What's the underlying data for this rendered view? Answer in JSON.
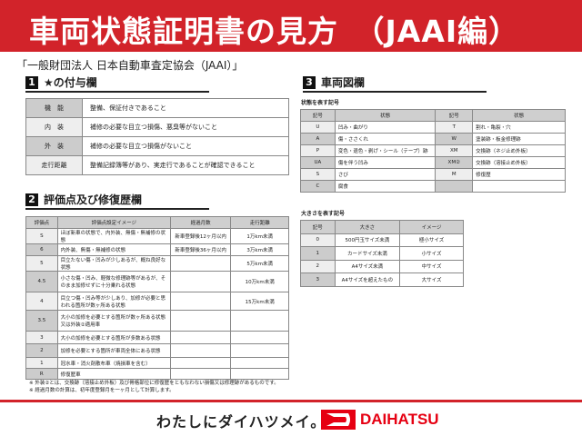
{
  "header": {
    "title": "車両状態証明書の見方　（JAAI編）",
    "band_color": "#d2232a"
  },
  "org": "「一般財団法人 日本自動車査定協会（JAAI）」",
  "sec1": {
    "num": "1",
    "title": "★の付与欄",
    "rows": [
      {
        "label": "機　能",
        "text": "整備、保証付きであること"
      },
      {
        "label": "内　装",
        "text": "補修の必要な目立つ損傷、悪臭等がないこと"
      },
      {
        "label": "外　装",
        "text": "補修の必要な目立つ損傷がないこと"
      },
      {
        "label": "走行距離",
        "text": "整備記録簿等があり、実走行であることが確認できること"
      }
    ]
  },
  "sec2": {
    "num": "2",
    "title": "評価点及び修復歴欄",
    "headers": [
      "評価点",
      "評価点設定イメージ",
      "経過月数",
      "走行距離"
    ],
    "rows": [
      [
        "S",
        "ほぼ新車の状態で、内外装、無傷・無補修の状態",
        "新車登録後12ヶ月以内",
        "1万km未満"
      ],
      [
        "6",
        "内外装、無傷・無補修の状態",
        "新車登録後36ヶ月以内",
        "3万km未満"
      ],
      [
        "5",
        "目立たない傷・凹みが少しあるが、概ね良好な状態",
        "",
        "5万km未満"
      ],
      [
        "4.5",
        "小さな傷・凹み、軽微な修理跡等があるが、そのまま加修せずに十分乗れる状態",
        "",
        "10万km未満"
      ],
      [
        "4",
        "目立つ傷・凹み等が少しあり、加修が必要と思われる箇所が数ヶ所ある状態",
        "",
        "15万km未満"
      ],
      [
        "3.5",
        "大小の加修を必要とする箇所が数ヶ所ある状態又は外装②適用車",
        "",
        ""
      ],
      [
        "3",
        "大小の加修を必要とする箇所が多数ある状態",
        "",
        ""
      ],
      [
        "2",
        "加修を必要とする箇所が車両全体にある状態",
        "",
        ""
      ],
      [
        "1",
        "冠水車・消火剤散布車（焼損車を含む）",
        "",
        ""
      ],
      [
        "R",
        "修復歴車",
        "",
        ""
      ]
    ]
  },
  "sec3": {
    "num": "3",
    "title": "車両図欄",
    "sub1": "状態を表す記号",
    "headers": [
      "記号",
      "状態",
      "記号",
      "状態"
    ],
    "rows": [
      [
        "U",
        "凹み・曲がり",
        "T",
        "割れ・亀裂・穴"
      ],
      [
        "A",
        "傷・ささくれ",
        "W",
        "塗装跡・板金修理跡"
      ],
      [
        "P",
        "変色・退色・剥げ・シール（テープ）跡",
        "XM",
        "交換跡（ネジ止め外板）"
      ],
      [
        "UA",
        "傷を伴う凹み",
        "XM②",
        "交換跡（溶接止め外板）"
      ],
      [
        "S",
        "さび",
        "M",
        "修復歴"
      ],
      [
        "C",
        "腐食",
        "",
        ""
      ]
    ],
    "sub2": "大きさを表す記号",
    "size_headers": [
      "記号",
      "大きさ",
      "イメージ"
    ],
    "size_rows": [
      [
        "0",
        "500円玉サイズ未満",
        "極小サイズ"
      ],
      [
        "1",
        "カードサイズ未満",
        "小サイズ"
      ],
      [
        "2",
        "A4サイズ未満",
        "中サイズ"
      ],
      [
        "3",
        "A4サイズを超えたもの",
        "大サイズ"
      ]
    ]
  },
  "notes": [
    "※ 外装②とは、交換跡（溶接止め外板）及び骨格部位に修復歴をともなわない損傷又は修理跡があるものです。",
    "※ 経過月数の計算は、初年度登録月を一ヶ月として計算します。"
  ],
  "footer": {
    "tagline": "わたしにダイハツメイ。",
    "brand": "DAIHATSU",
    "brand_color": "#e60012"
  }
}
